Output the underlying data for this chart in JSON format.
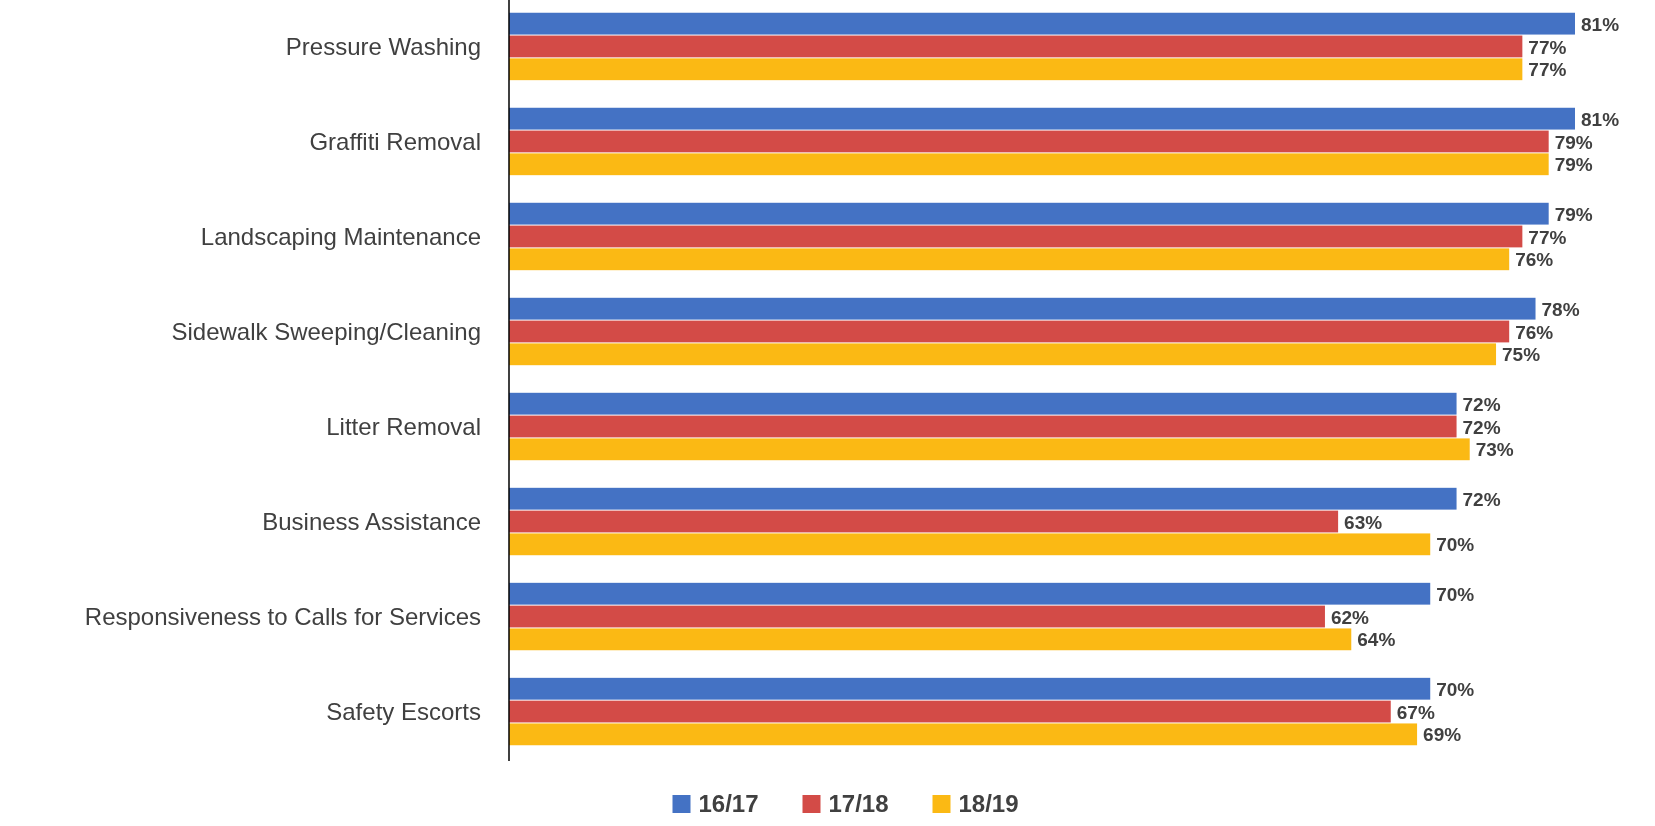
{
  "chart_data": {
    "type": "bar",
    "orientation": "horizontal",
    "categories": [
      "Pressure Washing",
      "Graffiti Removal",
      "Landscaping Maintenance",
      "Sidewalk Sweeping/Cleaning",
      "Litter Removal",
      "Business Assistance",
      "Responsiveness to Calls for Services",
      "Safety Escorts"
    ],
    "series": [
      {
        "name": "16/17",
        "color": "#4472c4",
        "values": [
          81,
          81,
          79,
          78,
          72,
          72,
          70,
          70
        ],
        "value_labels": [
          "81%",
          "81%",
          "79%",
          "78%",
          "72%",
          "72%",
          "70%",
          "70%"
        ]
      },
      {
        "name": "17/18",
        "color": "#d34b47",
        "values": [
          77,
          79,
          77,
          76,
          72,
          63,
          62,
          67
        ],
        "value_labels": [
          "77%",
          "79%",
          "77%",
          "76%",
          "72%",
          "63%",
          "62%",
          "67%"
        ]
      },
      {
        "name": "18/19",
        "color": "#fbb914",
        "values": [
          77,
          79,
          76,
          75,
          73,
          70,
          64,
          69
        ],
        "value_labels": [
          "77%",
          "79%",
          "76%",
          "75%",
          "73%",
          "70%",
          "64%",
          "69%"
        ]
      }
    ],
    "tick_labels": "y",
    "legend": "bottom"
  }
}
